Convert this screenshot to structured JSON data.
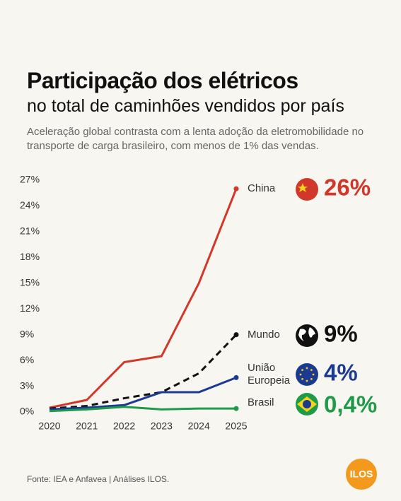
{
  "chart_data": {
    "type": "line",
    "title": "Participação dos elétricos",
    "subtitle": "no total de caminhões vendidos por país",
    "description": "Aceleração global contrasta com a lenta adoção da eletromobilidade no transporte de carga brasileiro, com menos de 1% das vendas.",
    "source": "Fonte: IEA e Anfavea | Análises ILOS.",
    "logo": "ILOS",
    "categories": [
      "2020",
      "2021",
      "2022",
      "2023",
      "2024",
      "2025"
    ],
    "ylim": [
      0,
      27
    ],
    "yticks": [
      {
        "value": 0,
        "label": "0%"
      },
      {
        "value": 3,
        "label": "3%"
      },
      {
        "value": 6,
        "label": "6%"
      },
      {
        "value": 9,
        "label": "9%"
      },
      {
        "value": 12,
        "label": "12%"
      },
      {
        "value": 15,
        "label": "15%"
      },
      {
        "value": 18,
        "label": "18%"
      },
      {
        "value": 21,
        "label": "21%"
      },
      {
        "value": 24,
        "label": "24%"
      },
      {
        "value": 27,
        "label": "27%"
      }
    ],
    "series": [
      {
        "name": "China",
        "color": "#d2382a",
        "line_style": "solid",
        "values": [
          0.5,
          1.4,
          5.8,
          6.5,
          15,
          26
        ],
        "value_labels": [
          null,
          null,
          null,
          null,
          null,
          "26%"
        ]
      },
      {
        "name": "Mundo",
        "color": "#111111",
        "line_style": "dashed",
        "values": [
          0.4,
          0.7,
          1.6,
          2.3,
          4.5,
          9
        ],
        "value_labels": [
          null,
          null,
          null,
          null,
          null,
          "9%"
        ]
      },
      {
        "name": "União Europeia",
        "color": "#1b3a91",
        "line_style": "solid",
        "values": [
          0.3,
          0.5,
          0.8,
          2.3,
          2.3,
          4
        ],
        "value_labels": [
          null,
          null,
          null,
          null,
          null,
          "4%"
        ]
      },
      {
        "name": "Brasil",
        "color": "#1e9a48",
        "line_style": "solid",
        "values": [
          0.1,
          0.3,
          0.6,
          0.3,
          0.4,
          0.4
        ],
        "value_labels": [
          null,
          null,
          null,
          null,
          null,
          "0,4%"
        ]
      }
    ]
  }
}
